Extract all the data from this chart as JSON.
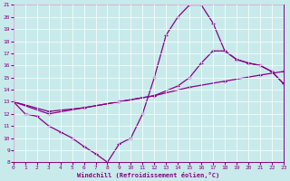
{
  "xlabel": "Windchill (Refroidissement éolien,°C)",
  "bg_color": "#c8eaea",
  "line_color": "#880088",
  "xlim": [
    0,
    23
  ],
  "ylim": [
    8,
    21
  ],
  "yticks": [
    8,
    9,
    10,
    11,
    12,
    13,
    14,
    15,
    16,
    17,
    18,
    19,
    20,
    21
  ],
  "xticks": [
    0,
    1,
    2,
    3,
    4,
    5,
    6,
    7,
    8,
    9,
    10,
    11,
    12,
    13,
    14,
    15,
    16,
    17,
    18,
    19,
    20,
    21,
    22,
    23
  ],
  "c1x": [
    0,
    1,
    2,
    3,
    4,
    5,
    6,
    7,
    8,
    9,
    10,
    11,
    12,
    13,
    14,
    15,
    16,
    17,
    18,
    19,
    20,
    21,
    22,
    23
  ],
  "c1y": [
    13.0,
    12.0,
    11.8,
    11.0,
    10.5,
    10.0,
    9.3,
    8.7,
    8.0,
    9.5,
    10.0,
    12.0,
    15.0,
    18.5,
    20.0,
    21.0,
    21.0,
    19.5,
    17.2,
    16.5,
    16.2,
    16.0,
    15.5,
    14.5
  ],
  "c2x": [
    0,
    3,
    6,
    9,
    12,
    14,
    15,
    16,
    17,
    18,
    19,
    20,
    21,
    22,
    23
  ],
  "c2y": [
    13.0,
    12.0,
    12.5,
    13.0,
    13.5,
    14.3,
    15.0,
    16.2,
    17.2,
    17.2,
    16.5,
    16.2,
    16.0,
    15.5,
    14.5
  ],
  "c3x": [
    0,
    3,
    6,
    9,
    12,
    15,
    18,
    21,
    23
  ],
  "c3y": [
    13.0,
    12.2,
    12.5,
    13.0,
    13.5,
    14.2,
    14.7,
    15.2,
    15.5
  ]
}
